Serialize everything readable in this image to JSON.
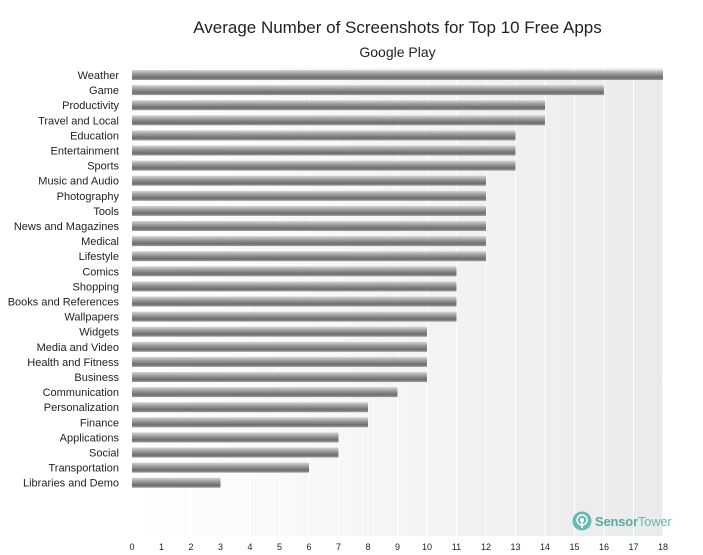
{
  "brand": {
    "name_part1": "Sensor",
    "name_part2": "Tower",
    "icon": "sensor-tower-logo-icon"
  },
  "chart_data": {
    "type": "bar",
    "orientation": "horizontal",
    "title": "Average Number of Screenshots for Top 10 Free Apps",
    "subtitle": "Google Play",
    "xlabel": "",
    "ylabel": "",
    "xlim": [
      0,
      18
    ],
    "xticks": [
      0,
      1,
      2,
      3,
      4,
      5,
      6,
      7,
      8,
      9,
      10,
      11,
      12,
      13,
      14,
      15,
      16,
      17,
      18
    ],
    "grid": true,
    "categories": [
      "Weather",
      "Game",
      "Productivity",
      "Travel and Local",
      "Education",
      "Entertainment",
      "Sports",
      "Music and Audio",
      "Photography",
      "Tools",
      "News and Magazines",
      "Medical",
      "Lifestyle",
      "Comics",
      "Shopping",
      "Books and References",
      "Wallpapers",
      "Widgets",
      "Media and Video",
      "Health and Fitness",
      "Business",
      "Communication",
      "Personalization",
      "Finance",
      "Applications",
      "Social",
      "Transportation",
      "Libraries and Demo"
    ],
    "values": [
      18,
      16,
      14,
      14,
      13,
      13,
      13,
      12,
      12,
      12,
      12,
      12,
      12,
      11,
      11,
      11,
      11,
      10,
      10,
      10,
      10,
      9,
      8,
      8,
      7,
      7,
      6,
      3
    ]
  }
}
